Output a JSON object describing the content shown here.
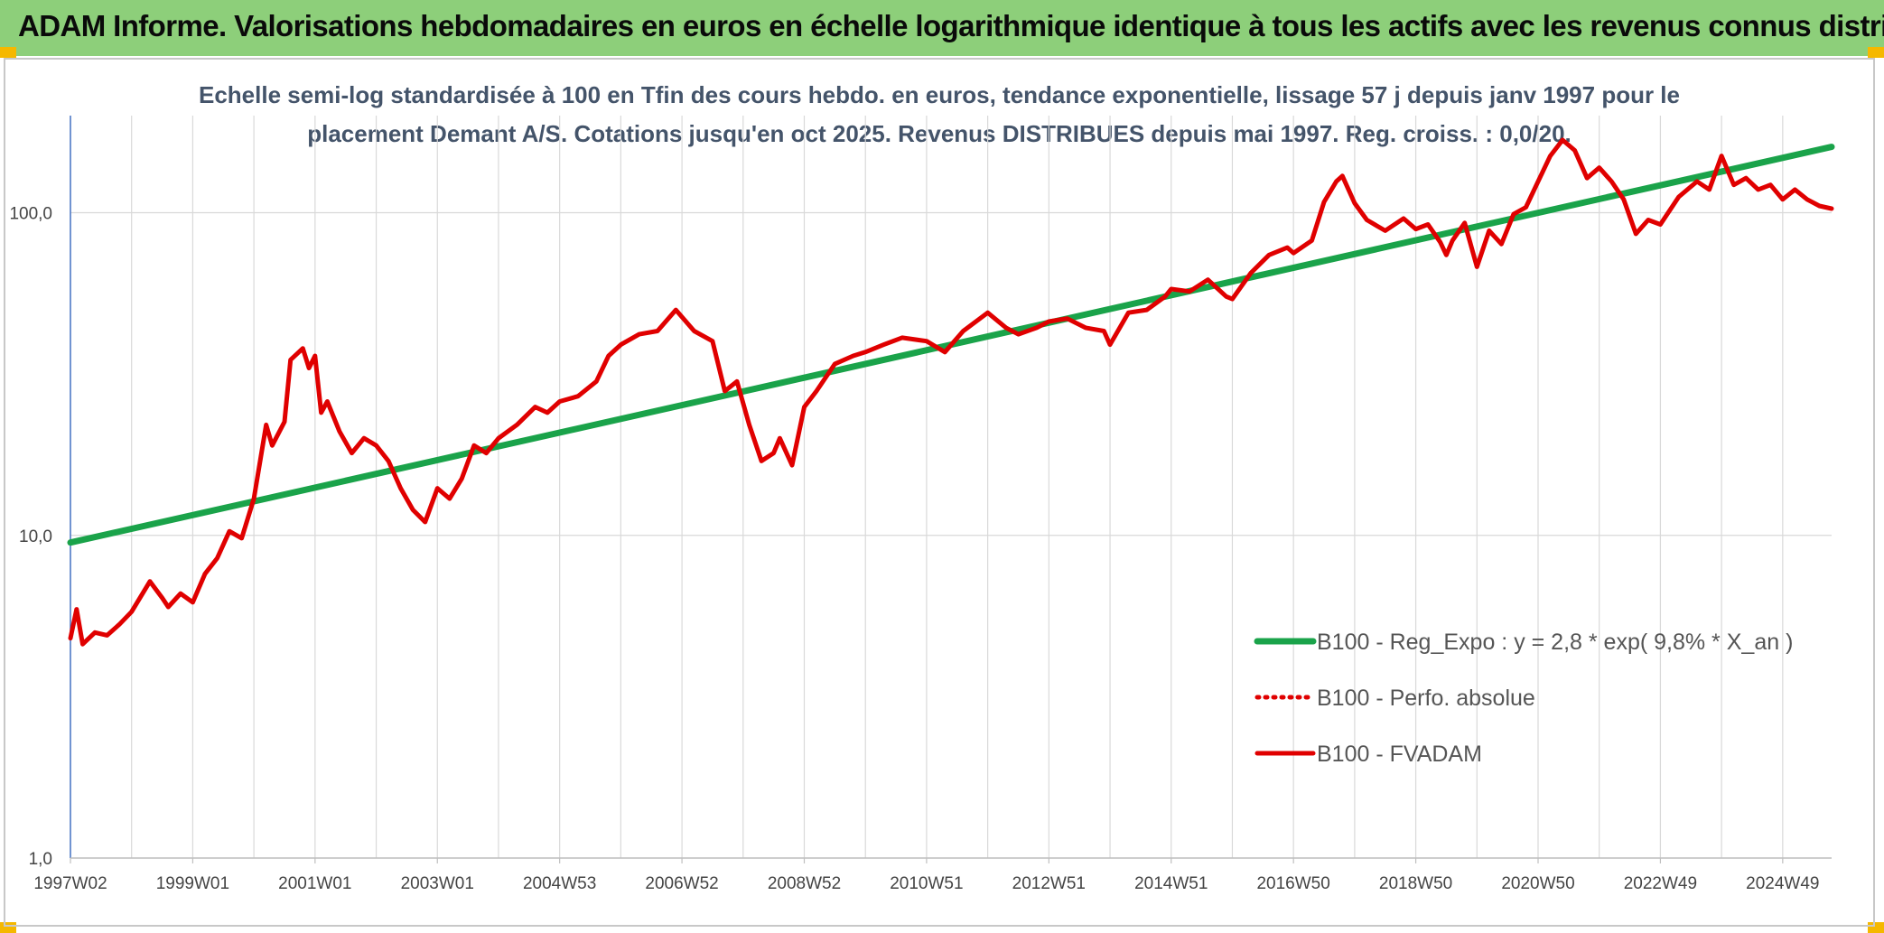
{
  "header": {
    "title": "ADAM Informe. Valorisations hebdomadaires en euros en échelle logarithmique identique à tous les actifs avec les revenus connus distribués"
  },
  "chart_data": {
    "type": "line",
    "title_line1": "Echelle semi-log standardisée à 100 en Tfin des cours hebdo. en euros, tendance exponentielle, lissage 57 j depuis janv 1997 pour le",
    "title_line2": "placement Demant A/S. Cotations jusqu'en oct 2025. Revenus DISTRIBUES depuis mai 1997. Reg. croiss. : 0,0/20.",
    "y_scale": "log",
    "ylim": [
      1,
      200
    ],
    "xlim": [
      1997.0,
      2025.8
    ],
    "y_ticks": [
      {
        "value": 1,
        "label": "1,0"
      },
      {
        "value": 10,
        "label": "10,0"
      },
      {
        "value": 100,
        "label": "100,0"
      }
    ],
    "x_ticks": [
      {
        "pos": 1997.0,
        "label": "1997W02"
      },
      {
        "pos": 1999.0,
        "label": "1999W01"
      },
      {
        "pos": 2001.0,
        "label": "2001W01"
      },
      {
        "pos": 2003.0,
        "label": "2003W01"
      },
      {
        "pos": 2005.0,
        "label": "2004W53"
      },
      {
        "pos": 2007.0,
        "label": "2006W52"
      },
      {
        "pos": 2009.0,
        "label": "2008W52"
      },
      {
        "pos": 2011.0,
        "label": "2010W51"
      },
      {
        "pos": 2013.0,
        "label": "2012W51"
      },
      {
        "pos": 2015.0,
        "label": "2014W51"
      },
      {
        "pos": 2017.0,
        "label": "2016W50"
      },
      {
        "pos": 2019.0,
        "label": "2018W50"
      },
      {
        "pos": 2021.0,
        "label": "2020W50"
      },
      {
        "pos": 2023.0,
        "label": "2022W49"
      },
      {
        "pos": 2025.0,
        "label": "2024W49"
      }
    ],
    "grid": true,
    "legend_position": "bottom-right",
    "series": [
      {
        "name": "B100 - Reg_Expo : y = 2,8 * exp( 9,8% *  X_an )",
        "color": "#1aa34a",
        "style": "solid",
        "x": [
          1997.0,
          2025.8
        ],
        "values": [
          9.5,
          160
        ]
      },
      {
        "name": "B100 - Perfo. absolue",
        "color": "#e00000",
        "style": "dotted",
        "x": [],
        "values": []
      },
      {
        "name": "B100 - FVADAM",
        "color": "#e00000",
        "style": "solid",
        "x": [
          1997.0,
          1997.1,
          1997.2,
          1997.4,
          1997.6,
          1997.8,
          1998.0,
          1998.3,
          1998.5,
          1998.6,
          1998.8,
          1999.0,
          1999.2,
          1999.4,
          1999.6,
          1999.8,
          2000.0,
          2000.2,
          2000.3,
          2000.5,
          2000.6,
          2000.8,
          2000.9,
          2001.0,
          2001.1,
          2001.2,
          2001.4,
          2001.6,
          2001.8,
          2002.0,
          2002.2,
          2002.4,
          2002.6,
          2002.8,
          2003.0,
          2003.2,
          2003.4,
          2003.6,
          2003.8,
          2004.0,
          2004.3,
          2004.6,
          2004.8,
          2005.0,
          2005.3,
          2005.6,
          2005.8,
          2006.0,
          2006.3,
          2006.6,
          2006.9,
          2007.2,
          2007.5,
          2007.7,
          2007.9,
          2008.1,
          2008.3,
          2008.5,
          2008.6,
          2008.8,
          2009.0,
          2009.2,
          2009.5,
          2009.8,
          2010.0,
          2010.3,
          2010.6,
          2011.0,
          2011.3,
          2011.6,
          2012.0,
          2012.3,
          2012.5,
          2012.8,
          2013.0,
          2013.3,
          2013.6,
          2013.9,
          2014.0,
          2014.3,
          2014.6,
          2014.9,
          2015.0,
          2015.3,
          2015.6,
          2015.9,
          2016.0,
          2016.3,
          2016.6,
          2016.9,
          2017.0,
          2017.3,
          2017.5,
          2017.7,
          2017.8,
          2018.0,
          2018.2,
          2018.5,
          2018.8,
          2019.0,
          2019.2,
          2019.4,
          2019.5,
          2019.6,
          2019.8,
          2020.0,
          2020.2,
          2020.4,
          2020.6,
          2020.8,
          2021.0,
          2021.2,
          2021.4,
          2021.6,
          2021.8,
          2022.0,
          2022.2,
          2022.4,
          2022.6,
          2022.8,
          2023.0,
          2023.3,
          2023.6,
          2023.8,
          2024.0,
          2024.2,
          2024.4,
          2024.6,
          2024.8,
          2025.0,
          2025.2,
          2025.4,
          2025.6,
          2025.8
        ],
        "values": [
          4.8,
          5.9,
          4.6,
          5.0,
          4.9,
          5.3,
          5.8,
          7.2,
          6.4,
          6.0,
          6.6,
          6.2,
          7.6,
          8.5,
          10.3,
          9.8,
          13.0,
          22.0,
          19.0,
          22.5,
          35.0,
          38.0,
          33.0,
          36.0,
          24.0,
          26.0,
          21.0,
          18.0,
          20.0,
          19.0,
          17.0,
          14.0,
          12.0,
          11.0,
          14.0,
          13.0,
          15.0,
          19.0,
          18.0,
          20.0,
          22.0,
          25.0,
          24.0,
          26.0,
          27.0,
          30.0,
          36.0,
          39.0,
          42.0,
          43.0,
          50.0,
          43.0,
          40.0,
          28.0,
          30.0,
          22.0,
          17.0,
          18.0,
          20.0,
          16.5,
          25.0,
          28.0,
          34.0,
          36.0,
          37.0,
          39.0,
          41.0,
          40.0,
          37.0,
          43.0,
          49.0,
          44.0,
          42.0,
          44.0,
          46.0,
          47.0,
          44.0,
          43.0,
          39.0,
          49.0,
          50.0,
          55.0,
          58.0,
          57.0,
          62.0,
          55.0,
          54.0,
          65.0,
          74.0,
          78.0,
          75.0,
          82.0,
          108.0,
          125.0,
          130.0,
          107.0,
          95.0,
          88.0,
          96.0,
          89.0,
          92.0,
          81.0,
          74.0,
          82.0,
          93.0,
          68.0,
          88.0,
          80.0,
          99.0,
          104.0,
          125.0,
          150.0,
          168.0,
          156.0,
          128.0,
          138.0,
          125.0,
          110.0,
          86.0,
          95.0,
          92.0,
          112.0,
          125.0,
          118.0,
          150.0,
          122.0,
          128.0,
          118.0,
          122.0,
          110.0,
          118.0,
          110.0,
          105.0,
          103.0
        ]
      }
    ]
  }
}
